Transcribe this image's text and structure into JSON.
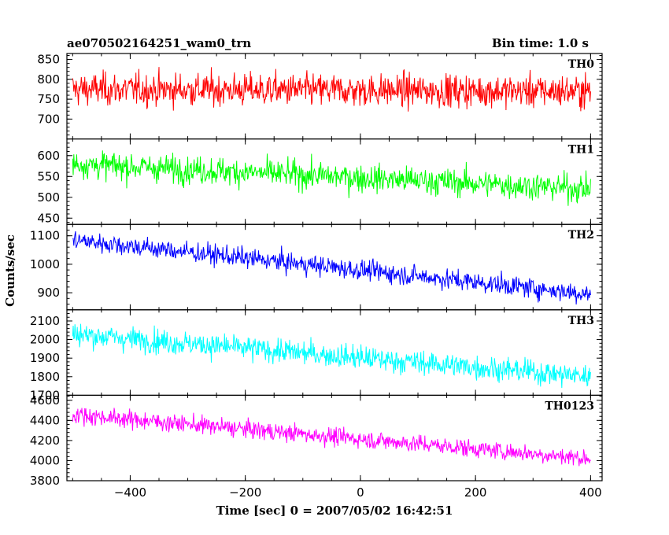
{
  "header": {
    "title": "ae070502164251_wam0_trn",
    "bin_time": "Bin time: 1.0 s"
  },
  "chart_data": {
    "type": "line",
    "title": "ae070502164251_wam0_trn",
    "subtitle": "Bin time: 1.0 s",
    "xlabel": "Time [sec] 0 = 2007/05/02 16:42:51",
    "ylabel": "Counts/sec",
    "xlim": [
      -510,
      420
    ],
    "x_ticks": [
      -400,
      -200,
      0,
      200,
      400
    ],
    "x_tick_labels": [
      "−400",
      "−200",
      "0",
      "200",
      "400"
    ],
    "x_step": 1,
    "x_range": [
      -500,
      400
    ],
    "panels": [
      {
        "name": "TH0",
        "color": "#ff0000",
        "ylim": [
          650,
          865
        ],
        "y_ticks": [
          700,
          750,
          800,
          850
        ],
        "mean_start": 775,
        "mean_end": 770,
        "noise": 35
      },
      {
        "name": "TH1",
        "color": "#00ff00",
        "ylim": [
          435,
          640
        ],
        "y_ticks": [
          450,
          500,
          550,
          600
        ],
        "mean_start": 580,
        "mean_end": 520,
        "noise": 28
      },
      {
        "name": "TH2",
        "color": "#0000ff",
        "ylim": [
          840,
          1140
        ],
        "y_ticks": [
          900,
          1000,
          1100
        ],
        "mean_start": 1085,
        "mean_end": 895,
        "noise": 30
      },
      {
        "name": "TH3",
        "color": "#00ffff",
        "ylim": [
          1700,
          2160
        ],
        "y_ticks": [
          1700,
          1800,
          1900,
          2000,
          2100
        ],
        "y_tick_labels": [
          "1700",
          "1800",
          "1900",
          "2000",
          "2100"
        ],
        "mean_start": 2030,
        "mean_end": 1800,
        "noise": 55
      },
      {
        "name": "TH0123",
        "color": "#ff00ff",
        "ylim": [
          3800,
          4650
        ],
        "y_ticks": [
          3800,
          4000,
          4200,
          4400,
          4600
        ],
        "mean_start": 4460,
        "mean_end": 4020,
        "noise": 75
      }
    ]
  }
}
